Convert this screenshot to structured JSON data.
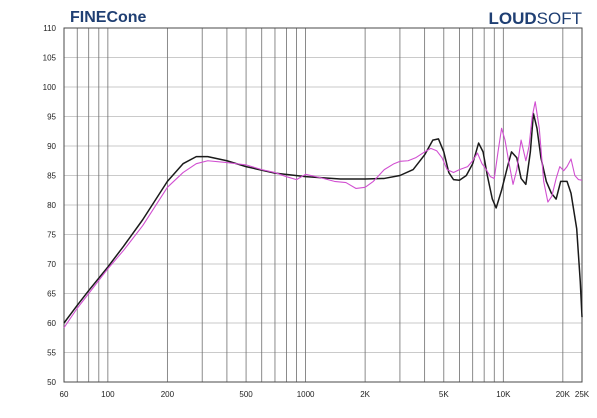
{
  "brand": {
    "left": "FINECone",
    "right_bold": "LOUD",
    "right_regular": "SOFT",
    "color": "#1f3f73"
  },
  "chart_data": {
    "type": "line",
    "title": "",
    "xlabel": "",
    "ylabel": "",
    "x_scale": "log",
    "xlim": [
      60,
      25000
    ],
    "ylim": [
      50,
      110
    ],
    "grid": true,
    "x_ticks": [
      {
        "value": 60,
        "label": "60"
      },
      {
        "value": 100,
        "label": "100"
      },
      {
        "value": 200,
        "label": "200"
      },
      {
        "value": 500,
        "label": "500"
      },
      {
        "value": 1000,
        "label": "1000"
      },
      {
        "value": 2000,
        "label": "2K"
      },
      {
        "value": 5000,
        "label": "5K"
      },
      {
        "value": 10000,
        "label": "10K"
      },
      {
        "value": 20000,
        "label": "20K"
      },
      {
        "value": 25000,
        "label": "25K"
      }
    ],
    "y_ticks": [
      50,
      55,
      60,
      65,
      70,
      75,
      80,
      85,
      90,
      95,
      100,
      105,
      110
    ],
    "series": [
      {
        "color": "#1a1a1a",
        "points": [
          [
            60,
            60
          ],
          [
            70,
            63
          ],
          [
            80,
            65.5
          ],
          [
            100,
            69.5
          ],
          [
            120,
            73
          ],
          [
            150,
            77.5
          ],
          [
            200,
            84
          ],
          [
            240,
            87
          ],
          [
            280,
            88.2
          ],
          [
            320,
            88.2
          ],
          [
            400,
            87.5
          ],
          [
            500,
            86.5
          ],
          [
            700,
            85.4
          ],
          [
            1000,
            84.8
          ],
          [
            1500,
            84.4
          ],
          [
            2000,
            84.4
          ],
          [
            2500,
            84.5
          ],
          [
            3000,
            85
          ],
          [
            3500,
            86
          ],
          [
            4000,
            88.5
          ],
          [
            4400,
            91
          ],
          [
            4700,
            91.2
          ],
          [
            5000,
            89
          ],
          [
            5300,
            85.5
          ],
          [
            5600,
            84.3
          ],
          [
            6000,
            84.2
          ],
          [
            6500,
            85
          ],
          [
            7000,
            87
          ],
          [
            7500,
            90.5
          ],
          [
            7900,
            89
          ],
          [
            8300,
            85
          ],
          [
            8800,
            81
          ],
          [
            9200,
            79.5
          ],
          [
            9800,
            82.5
          ],
          [
            10500,
            86.5
          ],
          [
            11000,
            89
          ],
          [
            11700,
            88
          ],
          [
            12300,
            84.5
          ],
          [
            13000,
            83.5
          ],
          [
            13700,
            89
          ],
          [
            14200,
            95.5
          ],
          [
            14800,
            93
          ],
          [
            15500,
            88
          ],
          [
            16500,
            84
          ],
          [
            17500,
            82
          ],
          [
            18500,
            81
          ],
          [
            19500,
            84
          ],
          [
            21000,
            84
          ],
          [
            22000,
            82
          ],
          [
            23500,
            76
          ],
          [
            24500,
            67
          ],
          [
            25000,
            61
          ]
        ]
      },
      {
        "color": "#d14fd1",
        "points": [
          [
            60,
            59.2
          ],
          [
            70,
            62.5
          ],
          [
            80,
            65
          ],
          [
            100,
            69.2
          ],
          [
            120,
            72.3
          ],
          [
            150,
            76.5
          ],
          [
            200,
            83
          ],
          [
            240,
            85.5
          ],
          [
            280,
            87
          ],
          [
            320,
            87.5
          ],
          [
            400,
            87.2
          ],
          [
            500,
            86.8
          ],
          [
            600,
            86
          ],
          [
            700,
            85.5
          ],
          [
            800,
            84.8
          ],
          [
            900,
            84.3
          ],
          [
            1000,
            85.2
          ],
          [
            1200,
            84.6
          ],
          [
            1400,
            84
          ],
          [
            1600,
            83.8
          ],
          [
            1800,
            82.8
          ],
          [
            2000,
            83
          ],
          [
            2200,
            84
          ],
          [
            2500,
            86
          ],
          [
            2800,
            87
          ],
          [
            3000,
            87.4
          ],
          [
            3300,
            87.5
          ],
          [
            3600,
            88
          ],
          [
            4000,
            89
          ],
          [
            4300,
            89.6
          ],
          [
            4600,
            89.2
          ],
          [
            4900,
            88
          ],
          [
            5200,
            86
          ],
          [
            5600,
            85.5
          ],
          [
            6000,
            86
          ],
          [
            6600,
            86.5
          ],
          [
            7000,
            87.5
          ],
          [
            7400,
            88.8
          ],
          [
            7800,
            87
          ],
          [
            8200,
            86
          ],
          [
            8600,
            84.8
          ],
          [
            9000,
            84.5
          ],
          [
            9400,
            89
          ],
          [
            9800,
            93
          ],
          [
            10200,
            91
          ],
          [
            10700,
            87
          ],
          [
            11200,
            83.5
          ],
          [
            11700,
            86
          ],
          [
            12300,
            91
          ],
          [
            13000,
            87.5
          ],
          [
            13500,
            90
          ],
          [
            14000,
            95
          ],
          [
            14500,
            97.5
          ],
          [
            15200,
            93
          ],
          [
            16000,
            84
          ],
          [
            16800,
            80.5
          ],
          [
            17600,
            81.5
          ],
          [
            18500,
            84.5
          ],
          [
            19300,
            86.5
          ],
          [
            20200,
            85.8
          ],
          [
            21000,
            86.5
          ],
          [
            22000,
            87.8
          ],
          [
            23000,
            85
          ],
          [
            24000,
            84.3
          ],
          [
            25000,
            84.2
          ]
        ]
      }
    ]
  }
}
